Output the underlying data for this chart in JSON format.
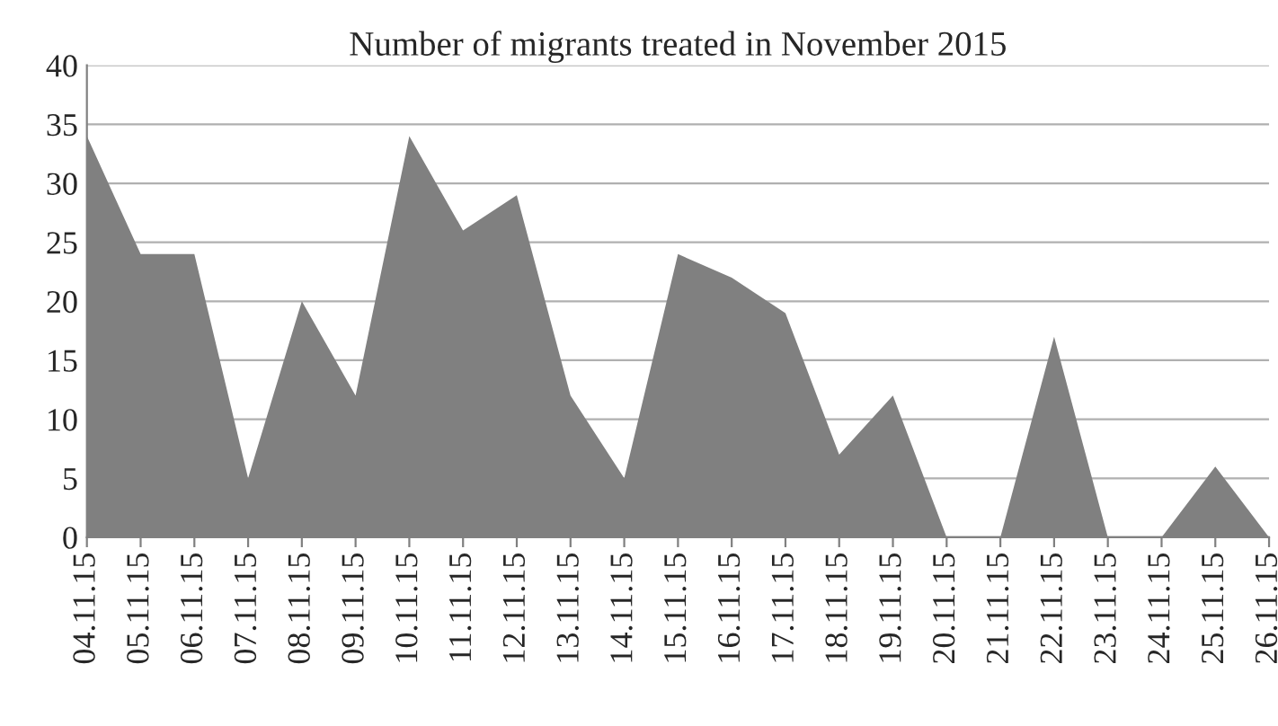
{
  "chart_data": {
    "type": "area",
    "title": "Number of migrants treated in November 2015",
    "categories": [
      "04.11.15",
      "05.11.15",
      "06.11.15",
      "07.11.15",
      "08.11.15",
      "09.11.15",
      "10.11.15",
      "11.11.15",
      "12.11.15",
      "13.11.15",
      "14.11.15",
      "15.11.15",
      "16.11.15",
      "17.11.15",
      "18.11.15",
      "19.11.15",
      "20.11.15",
      "21.11.15",
      "22.11.15",
      "23.11.15",
      "24.11.15",
      "25.11.15",
      "26.11.15"
    ],
    "values": [
      34,
      24,
      24,
      5,
      20,
      12,
      34,
      26,
      29,
      12,
      5,
      24,
      22,
      19,
      7,
      12,
      0,
      0,
      17,
      0,
      0,
      6,
      0
    ],
    "color": "#808080",
    "ylim": [
      0,
      40
    ],
    "yticks": [
      0,
      5,
      10,
      15,
      20,
      25,
      30,
      35,
      40
    ],
    "grid": "y",
    "legend": false
  }
}
